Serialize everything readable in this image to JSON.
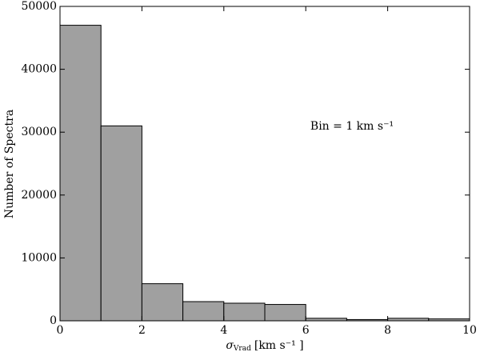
{
  "chart_data": {
    "type": "histogram",
    "bins": [
      0,
      1,
      2,
      3,
      4,
      5,
      6,
      7,
      8,
      9,
      10
    ],
    "counts": [
      47000,
      31000,
      5900,
      3050,
      2800,
      2600,
      400,
      200,
      400,
      300
    ],
    "color": "#a0a0a0",
    "edge_color": "#000000",
    "xlabel": {
      "symbol": "σ",
      "subscript": "Vrad",
      "unit": "[km s⁻¹ ]"
    },
    "ylabel": "Number of Spectra",
    "annotation": "Bin = 1 km s⁻¹",
    "xlim": [
      0,
      10
    ],
    "xticks": [
      0,
      2,
      4,
      6,
      8,
      10
    ],
    "ylim": [
      0,
      50000
    ],
    "yticks": [
      0,
      10000,
      20000,
      30000,
      40000,
      50000
    ]
  }
}
